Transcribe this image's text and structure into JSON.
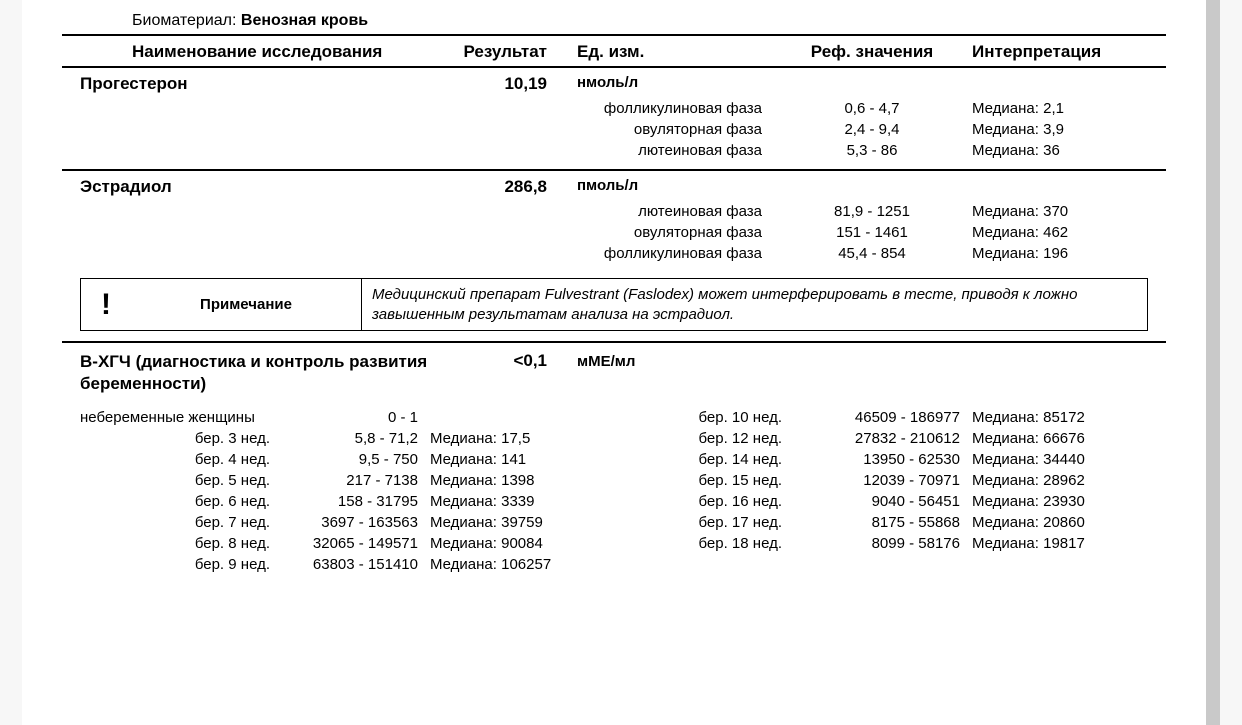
{
  "bio": {
    "label": "Биоматериал:",
    "value": "Венозная кровь"
  },
  "headers": {
    "name": "Наименование исследования",
    "result": "Результат",
    "unit": "Ед. изм.",
    "ref": "Реф. значения",
    "interp": "Интерпретация"
  },
  "prog": {
    "name": "Прогестерон",
    "result": "10,19",
    "unit": "нмоль/л",
    "phases": [
      {
        "label": "фолликулиновая фаза",
        "ref": "0,6 - 4,7",
        "interp": "Медиана: 2,1"
      },
      {
        "label": "овуляторная фаза",
        "ref": "2,4 - 9,4",
        "interp": "Медиана: 3,9"
      },
      {
        "label": "лютеиновая фаза",
        "ref": "5,3 - 86",
        "interp": "Медиана: 36"
      }
    ]
  },
  "estr": {
    "name": "Эстрадиол",
    "result": "286,8",
    "unit": "пмоль/л",
    "phases": [
      {
        "label": "лютеиновая фаза",
        "ref": "81,9 - 1251",
        "interp": "Медиана: 370"
      },
      {
        "label": "овуляторная фаза",
        "ref": "151 - 1461",
        "interp": "Медиана: 462"
      },
      {
        "label": "фолликулиновая фаза",
        "ref": "45,4 - 854",
        "interp": "Медиана: 196"
      }
    ]
  },
  "note": {
    "mark": "!",
    "label": "Примечание",
    "text": "Медицинский препарат Fulvestrant (Faslodex) может интерферировать в тесте, приводя к ложно завышенным результатам анализа на эстрадиол."
  },
  "hcg": {
    "name": "В-ХГЧ (диагностика и контроль развития беременности)",
    "result": "<0,1",
    "unit": "мМЕ/мл",
    "left": [
      {
        "label": "небеременные женщины",
        "range": "0 - 1",
        "median": ""
      },
      {
        "label": "бер. 3 нед.",
        "range": "5,8 - 71,2",
        "median": "Медиана: 17,5"
      },
      {
        "label": "бер. 4 нед.",
        "range": "9,5 - 750",
        "median": "Медиана: 141"
      },
      {
        "label": "бер. 5 нед.",
        "range": "217 - 7138",
        "median": "Медиана: 1398"
      },
      {
        "label": "бер. 6 нед.",
        "range": "158 - 31795",
        "median": "Медиана: 3339"
      },
      {
        "label": "бер. 7 нед.",
        "range": "3697 - 163563",
        "median": "Медиана: 39759"
      },
      {
        "label": "бер. 8 нед.",
        "range": "32065 - 149571",
        "median": "Медиана: 90084"
      },
      {
        "label": "бер. 9 нед.",
        "range": "63803 - 151410",
        "median": "Медиана: 106257"
      }
    ],
    "right": [
      {
        "label": "бер. 10 нед.",
        "range": "46509 - 186977",
        "median": "Медиана: 85172"
      },
      {
        "label": "бер. 12 нед.",
        "range": "27832 - 210612",
        "median": "Медиана: 66676"
      },
      {
        "label": "бер. 14 нед.",
        "range": "13950 - 62530",
        "median": "Медиана: 34440"
      },
      {
        "label": "бер. 15 нед.",
        "range": "12039 - 70971",
        "median": "Медиана: 28962"
      },
      {
        "label": "бер. 16 нед.",
        "range": "9040 - 56451",
        "median": "Медиана: 23930"
      },
      {
        "label": "бер. 17 нед.",
        "range": "8175 - 55868",
        "median": "Медиана: 20860"
      },
      {
        "label": "бер. 18 нед.",
        "range": "8099 - 58176",
        "median": "Медиана: 19817"
      }
    ]
  },
  "colors": {
    "text": "#000000",
    "background": "#ffffff",
    "border": "#000000"
  }
}
